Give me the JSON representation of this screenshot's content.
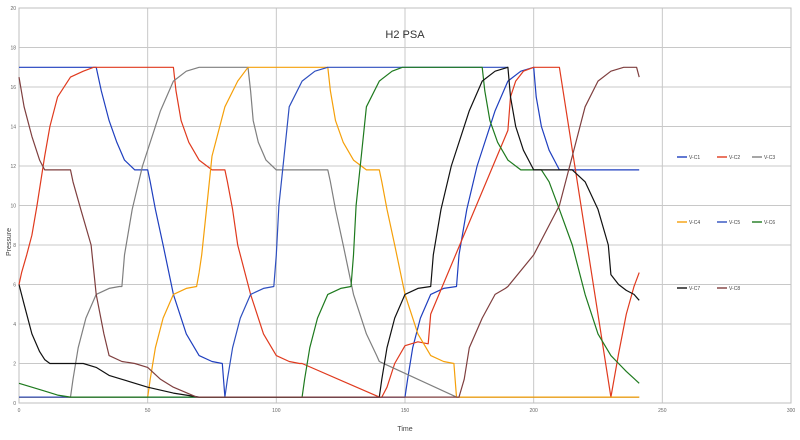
{
  "chart_data": {
    "type": "line",
    "title": "H2 PSA",
    "xlabel": "Time",
    "ylabel": "Pressure",
    "xlim": [
      0,
      300
    ],
    "ylim": [
      0,
      20
    ],
    "xticks": [
      "0",
      "50",
      "100",
      "150",
      "200",
      "250",
      "300"
    ],
    "yticks": [
      "0",
      "2",
      "4",
      "6",
      "8",
      "10",
      "12",
      "14",
      "16",
      "18",
      "20"
    ],
    "grid": true,
    "legend_position": "right",
    "colors": {
      "V-C1": "#1f3fbf",
      "V-C2": "#e03a1e",
      "V-C3": "#7f7f7f",
      "V-C4": "#f5a00a",
      "V-C5": "#2e4fbf",
      "V-C6": "#1e7a1e",
      "V-C7": "#111111",
      "V-C8": "#7f3f3f"
    },
    "legend_groups": [
      [
        "V-C1",
        "V-C2",
        "V-C3"
      ],
      [
        "V-C4",
        "V-C5",
        "V-C6"
      ],
      [
        "V-C7",
        "V-C8"
      ]
    ],
    "series": [
      {
        "name": "V-C1",
        "color": "#1f3fbf",
        "x": [
          0,
          30,
          32,
          35,
          38,
          41,
          45,
          50,
          51,
          53,
          56,
          60,
          65,
          70,
          75,
          79,
          80,
          150,
          151,
          153,
          156,
          160,
          165,
          170,
          171,
          174,
          178,
          185,
          190,
          195,
          200,
          201,
          203,
          206,
          210,
          215,
          220,
          225,
          229,
          230,
          241
        ],
        "y": [
          17,
          17,
          15.8,
          14.3,
          13.2,
          12.3,
          11.8,
          11.8,
          11.2,
          9.8,
          8,
          5.5,
          3.5,
          2.4,
          2.1,
          2,
          0.3,
          0.3,
          1.2,
          2.8,
          4.3,
          5.5,
          5.8,
          5.9,
          7.5,
          9.8,
          12,
          14.8,
          16.3,
          16.8,
          17,
          15.5,
          14,
          12.8,
          11.8,
          11.8,
          11.8,
          11.8,
          11.8,
          11.8,
          11.8
        ]
      },
      {
        "name": "V-C2",
        "color": "#e03a1e",
        "x": [
          0,
          1,
          3,
          5,
          7,
          10,
          12,
          15,
          20,
          25,
          29,
          30,
          60,
          61,
          63,
          66,
          70,
          75,
          79,
          80,
          81,
          83,
          85,
          90,
          95,
          100,
          105,
          109,
          110,
          140,
          141,
          143,
          146,
          150,
          155,
          159,
          160,
          190,
          191,
          193,
          196,
          200,
          205,
          209,
          210,
          230,
          233,
          236,
          239,
          241
        ],
        "y": [
          6,
          6.6,
          7.5,
          8.5,
          10,
          12.5,
          14,
          15.5,
          16.5,
          16.8,
          17,
          17,
          17,
          15.8,
          14.3,
          13.2,
          12.3,
          11.8,
          11.8,
          11.8,
          11.2,
          9.8,
          8,
          5.5,
          3.5,
          2.4,
          2.1,
          2,
          2,
          0.3,
          0.3,
          0.8,
          2,
          2.9,
          3.1,
          3,
          4.5,
          13.8,
          15.5,
          16.3,
          16.8,
          17,
          17,
          17,
          17,
          0.3,
          2.5,
          4.5,
          5.9,
          6.6
        ]
      },
      {
        "name": "V-C3",
        "color": "#7f7f7f",
        "x": [
          0,
          20,
          21,
          23,
          26,
          30,
          35,
          39,
          40,
          41,
          44,
          48,
          55,
          60,
          65,
          70,
          89,
          90,
          91,
          93,
          96,
          100,
          105,
          109,
          110,
          120,
          121,
          123,
          126,
          130,
          135,
          139,
          140,
          170,
          171,
          173,
          176,
          180,
          185,
          189,
          190,
          229,
          230,
          241
        ],
        "y": [
          0.3,
          0.3,
          1.2,
          2.8,
          4.3,
          5.5,
          5.8,
          5.9,
          5.9,
          7.5,
          9.8,
          12,
          14.8,
          16.3,
          16.8,
          17,
          17,
          15.8,
          14.3,
          13.2,
          12.3,
          11.8,
          11.8,
          11.8,
          11.8,
          11.8,
          11.2,
          9.8,
          8,
          5.5,
          3.5,
          2.4,
          2.1,
          0.3,
          0.3,
          0.3,
          0.3,
          0.3,
          0.3,
          0.3,
          0.3,
          0.3,
          0.3,
          0.3
        ]
      },
      {
        "name": "V-C4",
        "color": "#f5a00a",
        "x": [
          0,
          50,
          51,
          53,
          56,
          60,
          65,
          69,
          70,
          71,
          73,
          75,
          80,
          85,
          89,
          90,
          120,
          121,
          123,
          126,
          130,
          135,
          139,
          140,
          141,
          143,
          146,
          150,
          155,
          160,
          165,
          169,
          170,
          241
        ],
        "y": [
          0.3,
          0.3,
          1.2,
          2.8,
          4.3,
          5.5,
          5.8,
          5.9,
          6.6,
          7.5,
          10,
          12.5,
          15,
          16.3,
          17,
          17,
          17,
          15.8,
          14.3,
          13.2,
          12.3,
          11.8,
          11.8,
          11.8,
          11.2,
          9.8,
          8,
          5.5,
          3.5,
          2.4,
          2.1,
          2,
          0.3,
          0.3
        ]
      },
      {
        "name": "V-C5",
        "color": "#2e4fbf",
        "x": [
          0,
          79,
          80,
          81,
          83,
          86,
          90,
          95,
          99,
          100,
          101,
          103,
          105,
          110,
          115,
          120,
          160,
          190
        ],
        "y": [
          0.3,
          0.3,
          0.3,
          1.2,
          2.8,
          4.3,
          5.5,
          5.8,
          5.9,
          7.5,
          10,
          12.5,
          15,
          16.3,
          16.8,
          17,
          17,
          17
        ]
      },
      {
        "name": "V-C6",
        "color": "#1e7a1e",
        "x": [
          0,
          5,
          10,
          15,
          20,
          21,
          100,
          109,
          110,
          111,
          113,
          116,
          120,
          125,
          129,
          130,
          131,
          133,
          135,
          140,
          145,
          149,
          150,
          180,
          181,
          183,
          186,
          190,
          195,
          199,
          200,
          201,
          203,
          206,
          210,
          215,
          220,
          225,
          230,
          233,
          236,
          241
        ],
        "y": [
          1,
          0.8,
          0.6,
          0.4,
          0.3,
          0.3,
          0.3,
          0.3,
          0.3,
          1.2,
          2.8,
          4.3,
          5.5,
          5.8,
          5.9,
          7.5,
          10,
          12.5,
          15,
          16.3,
          16.8,
          17,
          17,
          17,
          15.8,
          14.3,
          13.2,
          12.3,
          11.8,
          11.8,
          11.8,
          11.8,
          11.8,
          11.2,
          9.8,
          8,
          5.5,
          3.5,
          2.4,
          2,
          1.6,
          1
        ]
      },
      {
        "name": "V-C7",
        "color": "#111111",
        "x": [
          0,
          2,
          5,
          8,
          10,
          12,
          15,
          20,
          25,
          30,
          35,
          40,
          50,
          60,
          70,
          80,
          139,
          140,
          141,
          143,
          146,
          150,
          155,
          160,
          161,
          164,
          168,
          175,
          180,
          185,
          190,
          191,
          193,
          196,
          200,
          205,
          210,
          215,
          220,
          225,
          229,
          230,
          233,
          236,
          239,
          241
        ],
        "y": [
          6,
          5,
          3.5,
          2.6,
          2.2,
          2,
          2,
          2,
          2,
          1.8,
          1.4,
          1.2,
          0.8,
          0.5,
          0.3,
          0.3,
          0.3,
          0.3,
          1.2,
          2.8,
          4.3,
          5.5,
          5.8,
          5.9,
          7.5,
          9.8,
          12,
          14.8,
          16.3,
          16.8,
          17,
          15.5,
          14,
          12.8,
          11.8,
          11.8,
          11.8,
          11.8,
          11.2,
          9.8,
          8,
          6.5,
          6,
          5.7,
          5.5,
          5.2
        ]
      },
      {
        "name": "V-C8",
        "color": "#7f3f3f",
        "x": [
          0,
          2,
          5,
          8,
          10,
          15,
          20,
          21,
          24,
          28,
          30,
          33,
          35,
          40,
          45,
          50,
          55,
          60,
          69,
          70,
          170,
          171,
          173,
          175,
          180,
          185,
          189,
          190,
          200,
          210,
          215,
          220,
          225,
          230,
          235,
          239,
          240,
          241
        ],
        "y": [
          16.5,
          15,
          13.5,
          12.3,
          11.8,
          11.8,
          11.8,
          11.2,
          9.8,
          8,
          5.5,
          3.5,
          2.4,
          2.1,
          2,
          1.8,
          1.2,
          0.8,
          0.3,
          0.3,
          0.3,
          0.3,
          1.2,
          2.8,
          4.3,
          5.5,
          5.8,
          5.9,
          7.5,
          10,
          12.5,
          15,
          16.3,
          16.8,
          17,
          17,
          17,
          16.5
        ]
      }
    ]
  }
}
